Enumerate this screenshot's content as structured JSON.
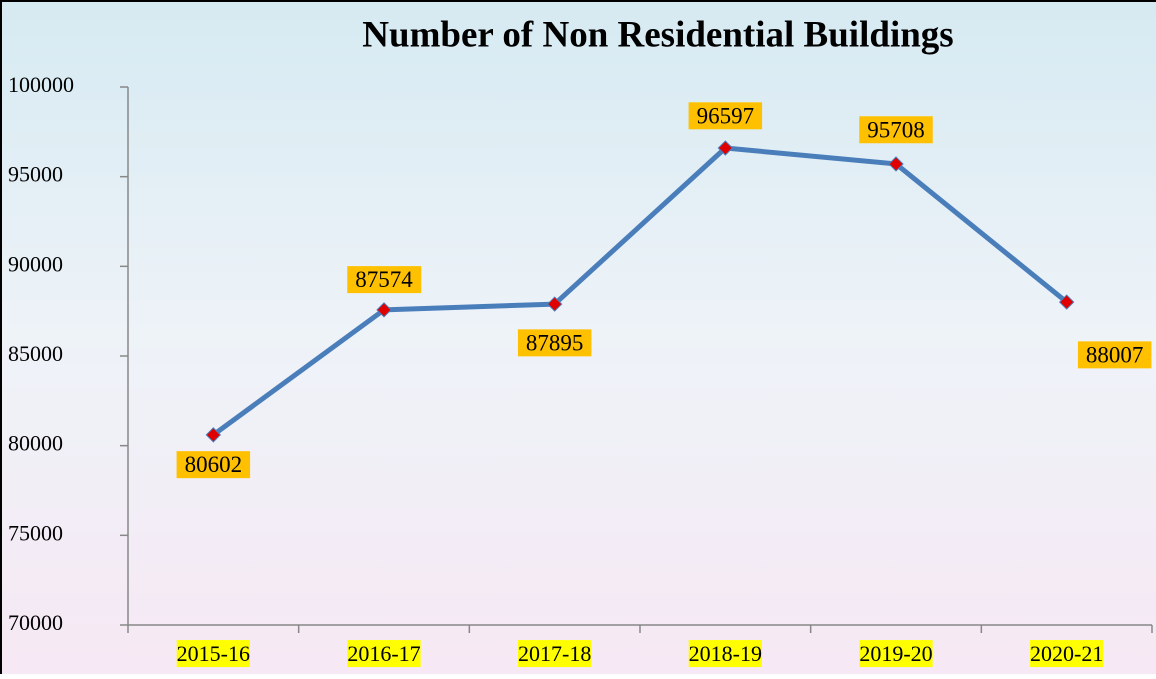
{
  "chart_data": {
    "type": "line",
    "title": "Number of Non Residential Buildings",
    "categories": [
      "2015-16",
      "2016-17",
      "2017-18",
      "2018-19",
      "2019-20",
      "2020-21"
    ],
    "series": [
      {
        "name": "Number of Non Residential Buildings",
        "color": "#4a7ebb",
        "values": [
          80602,
          87574,
          87895,
          96597,
          95708,
          88007
        ]
      }
    ],
    "ylim": [
      70000,
      100000
    ],
    "yticks": [
      70000,
      75000,
      80000,
      85000,
      90000,
      95000,
      100000
    ],
    "marker_color": "#e00000",
    "label_color": "#ffc000",
    "category_highlight": "#ffff00",
    "grid": false
  }
}
